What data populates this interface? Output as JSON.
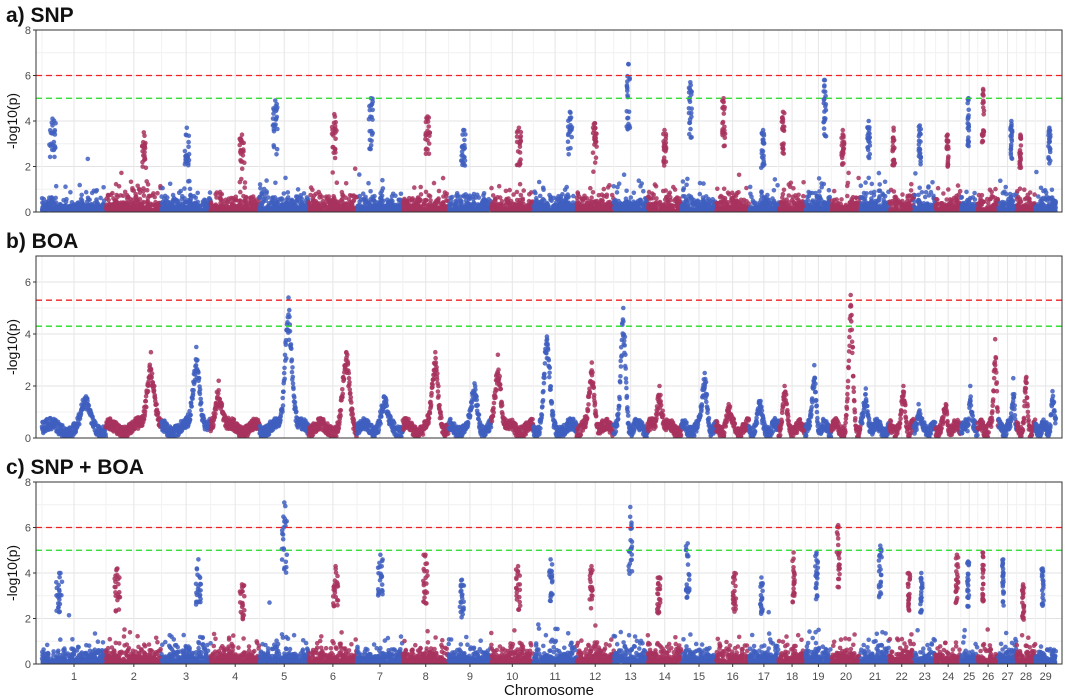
{
  "chart_data": {
    "type": "scatter",
    "kind": "manhattan",
    "xlabel": "Chromosome",
    "chromosomes": [
      "1",
      "2",
      "3",
      "4",
      "5",
      "6",
      "7",
      "8",
      "9",
      "10",
      "11",
      "12",
      "13",
      "14",
      "15",
      "16",
      "17",
      "18",
      "19",
      "20",
      "21",
      "22",
      "23",
      "24",
      "25",
      "26",
      "27",
      "28",
      "29"
    ],
    "chromosome_lengths_mb": [
      158,
      137,
      121,
      121,
      121,
      119,
      113,
      113,
      105,
      104,
      107,
      91,
      84,
      84,
      85,
      81,
      73,
      66,
      64,
      72,
      71,
      61,
      53,
      62,
      42,
      51,
      45,
      46,
      51
    ],
    "series_colors": [
      "#3f5fbf",
      "#a8325e"
    ],
    "threshold_colors": {
      "suggestive": "#22dd22",
      "genome_wide": "#ee2222"
    },
    "panels": [
      {
        "title": "a) SNP",
        "ylabel": "-log10(p)",
        "ylim": [
          0,
          8
        ],
        "yticks": [
          "0",
          "2",
          "4",
          "6",
          "8"
        ],
        "thresholds": {
          "genome_wide": 6.0,
          "suggestive": 5.0
        },
        "chromosome_peaks": [
          4.1,
          3.5,
          3.7,
          3.4,
          4.9,
          4.3,
          5.0,
          4.2,
          3.6,
          3.7,
          4.4,
          3.9,
          6.5,
          3.6,
          5.7,
          5.0,
          3.6,
          4.4,
          5.8,
          3.6,
          4.0,
          3.7,
          3.8,
          3.4,
          5.0,
          5.4,
          4.0,
          3.4,
          3.7
        ]
      },
      {
        "title": "b) BOA",
        "ylabel": "-log10(p)",
        "ylim": [
          0,
          7
        ],
        "yticks": [
          "0",
          "2",
          "4",
          "6"
        ],
        "thresholds": {
          "genome_wide": 5.3,
          "suggestive": 4.3
        },
        "chromosome_peaks": [
          1.6,
          3.3,
          3.5,
          2.2,
          5.4,
          3.3,
          1.6,
          3.3,
          2.1,
          3.2,
          3.9,
          2.9,
          5.0,
          2.0,
          2.5,
          1.3,
          1.4,
          2.0,
          2.8,
          5.5,
          1.9,
          2.0,
          1.3,
          1.3,
          2.0,
          3.8,
          2.3,
          2.3,
          1.8
        ]
      },
      {
        "title": "c) SNP + BOA",
        "ylabel": "-log10(p)",
        "ylim": [
          0,
          8
        ],
        "yticks": [
          "0",
          "2",
          "4",
          "6",
          "8"
        ],
        "thresholds": {
          "genome_wide": 6.0,
          "suggestive": 5.0
        },
        "chromosome_peaks": [
          4.0,
          4.2,
          4.6,
          3.5,
          7.1,
          4.3,
          4.8,
          4.8,
          3.7,
          4.3,
          4.6,
          4.3,
          6.9,
          3.8,
          5.3,
          4.0,
          3.8,
          4.9,
          4.9,
          6.1,
          5.2,
          4.0,
          4.0,
          4.8,
          4.5,
          4.9,
          4.6,
          3.5,
          4.2
        ]
      }
    ]
  }
}
